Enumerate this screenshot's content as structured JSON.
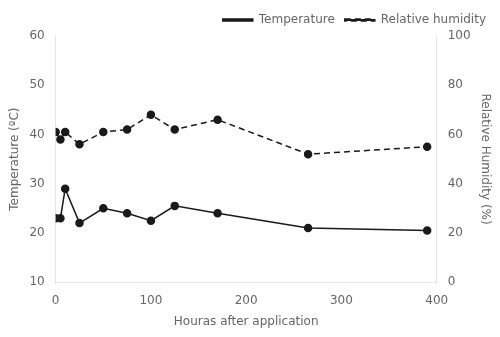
{
  "chart_data": {
    "type": "line",
    "xlabel": "Houras after application",
    "ylabel": "Temperature (ºC)",
    "y2label": "Relative Humidity (%)",
    "x": [
      0,
      5,
      10,
      25,
      50,
      75,
      100,
      125,
      170,
      265,
      390
    ],
    "series": [
      {
        "name": "Temperature",
        "color": "#1a1a1a",
        "line_style": "solid",
        "marker": "circle",
        "values": [
          23,
          23,
          29,
          22,
          25,
          24,
          22.5,
          25.5,
          24,
          21,
          20.5
        ]
      },
      {
        "name": "Relative humidity",
        "color": "#1a1a1a",
        "line_style": "dashed",
        "marker": "circle",
        "axis": "y2",
        "values": [
          61,
          58,
          61,
          56,
          61,
          62,
          68,
          62,
          66,
          52,
          55
        ]
      }
    ],
    "xlim": [
      0,
      400
    ],
    "ylim": [
      10,
      60
    ],
    "y2lim": [
      0,
      100
    ],
    "xticks": [
      0,
      100,
      200,
      300,
      400
    ],
    "yticks": [
      10,
      20,
      30,
      40,
      50,
      60
    ],
    "y2ticks": [
      0,
      20,
      40,
      60,
      80,
      100
    ],
    "grid": false,
    "legend": "upper right"
  }
}
